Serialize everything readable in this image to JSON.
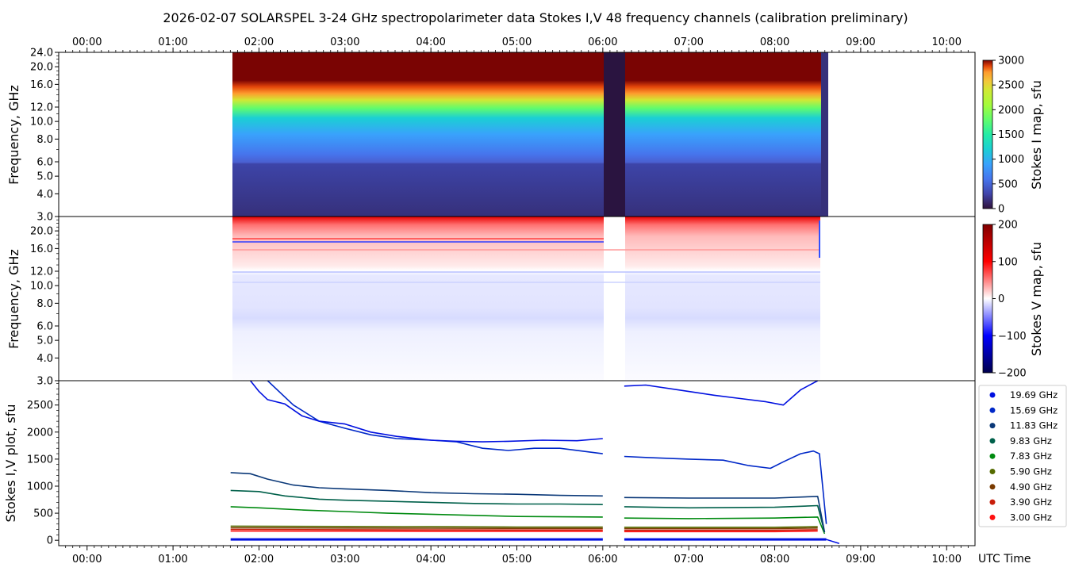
{
  "figure": {
    "title": "2026-02-07  SOLARSPEL  3-24 GHz spectropolarimeter data   Stokes I,V   48 frequency channels   (calibration preliminary)"
  },
  "chart_data": [
    {
      "type": "heatmap",
      "panel": "stokes-i-map",
      "xlabel": "",
      "ylabel": "Frequency, GHz",
      "x_ticks": [
        "00:00",
        "01:00",
        "02:00",
        "03:00",
        "04:00",
        "05:00",
        "06:00",
        "07:00",
        "08:00",
        "09:00",
        "10:00"
      ],
      "xlim_hours": [
        -0.33,
        10.33
      ],
      "y_ticks": [
        "3.0",
        "4.0",
        "5.0",
        "6.0",
        "8.0",
        "10.0",
        "12.0",
        "16.0",
        "20.0",
        "24.0"
      ],
      "ylim_ghz": [
        3.0,
        24.0
      ],
      "y_scale": "log",
      "data_span_hours": [
        1.67,
        8.65
      ],
      "gap_hours": [
        6.0,
        6.25
      ],
      "colorbar": {
        "label": "Stokes I map, sfu",
        "ticks": [
          "0",
          "500",
          "1000",
          "1500",
          "2000",
          "2500",
          "3000"
        ],
        "range": [
          0,
          3000
        ],
        "colormap": "turbo"
      },
      "notes": "saturation boundary (3000 sfu) near 14-15 GHz rising to ~20 GHz; 3-6 GHz ~200 sfu"
    },
    {
      "type": "heatmap",
      "panel": "stokes-v-map",
      "xlabel": "",
      "ylabel": "Frequency, GHz",
      "y_ticks": [
        "3.0",
        "4.0",
        "5.0",
        "6.0",
        "8.0",
        "10.0",
        "12.0",
        "16.0",
        "20.0"
      ],
      "ylim_ghz": [
        3.0,
        24.0
      ],
      "y_scale": "log",
      "data_span_hours": [
        1.67,
        8.55
      ],
      "gap_hours": [
        6.0,
        6.25
      ],
      "colorbar": {
        "label": "Stokes V map, sfu",
        "ticks": [
          "−200",
          "−100",
          "0",
          "100",
          "200"
        ],
        "range": [
          -200,
          200
        ],
        "colormap": "seismic"
      },
      "notes": "positive V above ~14 GHz, weak negative V between 6 and 13 GHz"
    },
    {
      "type": "line",
      "panel": "stokes-iv-plot",
      "xlabel": "UTC Time",
      "ylabel": "Stokes I,V plot, sfu",
      "x_ticks": [
        "00:00",
        "01:00",
        "02:00",
        "03:00",
        "04:00",
        "05:00",
        "06:00",
        "07:00",
        "08:00",
        "09:00",
        "10:00"
      ],
      "xlim_hours": [
        -0.33,
        10.33
      ],
      "ylim": [
        -100,
        2950
      ],
      "y_ticks": [
        "0",
        "500",
        "1000",
        "1500",
        "2000",
        "2500"
      ],
      "series": [
        {
          "name": "19.69 GHz",
          "color": "#0010e0",
          "points": [
            [
              1.9,
              2950
            ],
            [
              2.0,
              2750
            ],
            [
              2.1,
              2600
            ],
            [
              2.3,
              2520
            ],
            [
              2.5,
              2300
            ],
            [
              2.7,
              2200
            ],
            [
              3.0,
              2150
            ],
            [
              3.3,
              2000
            ],
            [
              3.6,
              1920
            ],
            [
              4.0,
              1850
            ],
            [
              4.3,
              1830
            ],
            [
              4.6,
              1820
            ],
            [
              4.9,
              1830
            ],
            [
              5.3,
              1850
            ],
            [
              5.7,
              1840
            ],
            [
              6.0,
              1880
            ],
            [
              6.25,
              2850
            ],
            [
              6.5,
              2870
            ],
            [
              7.0,
              2750
            ],
            [
              7.3,
              2680
            ],
            [
              7.6,
              2620
            ],
            [
              7.9,
              2560
            ],
            [
              8.1,
              2500
            ],
            [
              8.3,
              2780
            ],
            [
              8.5,
              2950
            ]
          ]
        },
        {
          "name": "15.69 GHz",
          "color": "#0028c8",
          "points": [
            [
              2.1,
              2950
            ],
            [
              2.4,
              2500
            ],
            [
              2.7,
              2200
            ],
            [
              3.0,
              2070
            ],
            [
              3.3,
              1950
            ],
            [
              3.6,
              1880
            ],
            [
              4.0,
              1850
            ],
            [
              4.3,
              1820
            ],
            [
              4.6,
              1700
            ],
            [
              4.9,
              1660
            ],
            [
              5.2,
              1700
            ],
            [
              5.5,
              1700
            ],
            [
              5.8,
              1640
            ],
            [
              6.0,
              1600
            ],
            [
              6.25,
              1550
            ],
            [
              6.5,
              1530
            ],
            [
              7.0,
              1500
            ],
            [
              7.4,
              1480
            ],
            [
              7.7,
              1380
            ],
            [
              7.95,
              1330
            ],
            [
              8.1,
              1450
            ],
            [
              8.3,
              1600
            ],
            [
              8.45,
              1650
            ],
            [
              8.52,
              1600
            ],
            [
              8.6,
              300
            ]
          ]
        },
        {
          "name": "11.83 GHz",
          "color": "#0a3878",
          "points": [
            [
              1.67,
              1250
            ],
            [
              1.9,
              1230
            ],
            [
              2.1,
              1130
            ],
            [
              2.4,
              1020
            ],
            [
              2.7,
              970
            ],
            [
              3.0,
              950
            ],
            [
              3.5,
              920
            ],
            [
              4.0,
              880
            ],
            [
              4.5,
              860
            ],
            [
              5.0,
              850
            ],
            [
              5.5,
              830
            ],
            [
              6.0,
              820
            ],
            [
              6.25,
              790
            ],
            [
              7.0,
              780
            ],
            [
              8.0,
              780
            ],
            [
              8.5,
              810
            ],
            [
              8.58,
              150
            ]
          ]
        },
        {
          "name": "9.83 GHz",
          "color": "#00604a",
          "points": [
            [
              1.67,
              920
            ],
            [
              2.0,
              900
            ],
            [
              2.3,
              820
            ],
            [
              2.7,
              760
            ],
            [
              3.0,
              740
            ],
            [
              3.5,
              720
            ],
            [
              4.0,
              700
            ],
            [
              4.5,
              680
            ],
            [
              5.0,
              670
            ],
            [
              5.5,
              670
            ],
            [
              6.0,
              660
            ],
            [
              6.25,
              620
            ],
            [
              7.0,
              600
            ],
            [
              8.0,
              610
            ],
            [
              8.5,
              640
            ],
            [
              8.58,
              150
            ]
          ]
        },
        {
          "name": "7.83 GHz",
          "color": "#008a10",
          "points": [
            [
              1.67,
              620
            ],
            [
              2.0,
              600
            ],
            [
              2.5,
              560
            ],
            [
              3.0,
              530
            ],
            [
              3.5,
              500
            ],
            [
              4.0,
              480
            ],
            [
              4.5,
              460
            ],
            [
              5.0,
              440
            ],
            [
              6.0,
              430
            ],
            [
              6.25,
              410
            ],
            [
              7.0,
              400
            ],
            [
              8.0,
              410
            ],
            [
              8.5,
              430
            ],
            [
              8.58,
              120
            ]
          ]
        },
        {
          "name": "5.90 GHz",
          "color": "#556b00",
          "points": [
            [
              1.67,
              260
            ],
            [
              3.0,
              255
            ],
            [
              4.0,
              250
            ],
            [
              5.0,
              245
            ],
            [
              6.0,
              245
            ],
            [
              6.25,
              240
            ],
            [
              8.0,
              240
            ],
            [
              8.5,
              250
            ]
          ]
        },
        {
          "name": "4.90 GHz",
          "color": "#7a3a00",
          "points": [
            [
              1.67,
              230
            ],
            [
              3.0,
              225
            ],
            [
              4.0,
              222
            ],
            [
              5.0,
              220
            ],
            [
              6.0,
              220
            ],
            [
              6.25,
              215
            ],
            [
              8.0,
              215
            ],
            [
              8.5,
              225
            ]
          ]
        },
        {
          "name": "3.90 GHz",
          "color": "#c81e0a",
          "points": [
            [
              1.67,
              200
            ],
            [
              3.0,
              195
            ],
            [
              4.0,
              192
            ],
            [
              5.0,
              190
            ],
            [
              6.0,
              190
            ],
            [
              6.25,
              185
            ],
            [
              8.0,
              185
            ],
            [
              8.5,
              195
            ]
          ]
        },
        {
          "name": "3.00 GHz",
          "color": "#ff1010",
          "points": [
            [
              1.67,
              170
            ],
            [
              3.0,
              168
            ],
            [
              4.0,
              165
            ],
            [
              5.0,
              165
            ],
            [
              6.0,
              165
            ],
            [
              6.25,
              160
            ],
            [
              8.0,
              160
            ],
            [
              8.5,
              170
            ]
          ]
        }
      ],
      "v_baseline": {
        "color": "#0010e0",
        "value": 15
      },
      "legend": "right"
    }
  ]
}
